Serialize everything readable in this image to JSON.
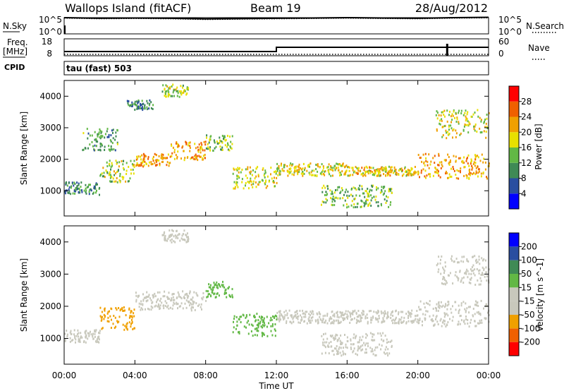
{
  "header": {
    "station": "Wallops Island (fitACF)",
    "beam": "Beam 19",
    "date": "28/Aug/2012"
  },
  "noise_panel": {
    "left_label": "N.Sky",
    "left_ticks": [
      "10^5",
      "10^0"
    ],
    "right_label": "N.Search",
    "right_ticks": [
      "10^5",
      "10^0"
    ]
  },
  "freq_panel": {
    "left_label_line1": "Freq.",
    "left_label_line2": "[MHz]",
    "left_ticks": [
      "18",
      "8"
    ],
    "right_label": "Nave",
    "right_ticks": [
      "60",
      "0"
    ]
  },
  "cpid_panel": {
    "label": "CPID",
    "mode_text": "tau (fast) 503"
  },
  "time_axis": {
    "label": "Time UT",
    "ticks": [
      "00:00",
      "04:00",
      "08:00",
      "12:00",
      "16:00",
      "20:00",
      "00:00"
    ]
  },
  "colors": {
    "power_scale": [
      "#0000ff",
      "#2a4ea0",
      "#3f8a55",
      "#62b845",
      "#e8e000",
      "#f0a000",
      "#f06000",
      "#ff0000"
    ],
    "velocity_scale": [
      "#ff0000",
      "#f06000",
      "#f0a000",
      "#c8c8bc",
      "#c8c8bc",
      "#62b845",
      "#3f8a55",
      "#2a4ea0",
      "#0000ff"
    ]
  },
  "chart_data": [
    {
      "type": "line",
      "name": "noise",
      "title": "",
      "xlabel": "",
      "ylabel": "N.Sky",
      "x_hours": [
        0,
        2,
        4,
        6,
        8,
        10,
        12,
        14,
        16,
        18,
        20,
        22,
        24
      ],
      "series": [
        {
          "name": "N.Sky",
          "values": [
            5.0,
            4.8,
            4.9,
            4.8,
            4.6,
            4.7,
            4.8,
            4.9,
            5.0,
            4.9,
            4.8,
            5.0,
            5.1
          ]
        },
        {
          "name": "N.Search",
          "values": [
            4.8,
            4.6,
            4.7,
            4.6,
            4.4,
            4.5,
            4.6,
            4.7,
            4.8,
            4.7,
            4.6,
            4.8,
            4.9
          ]
        }
      ],
      "ylim_exp": [
        0,
        5
      ]
    },
    {
      "type": "line",
      "name": "frequency",
      "ylabel": "Freq. [MHz]",
      "x_hours": [
        0,
        12,
        12,
        24
      ],
      "series": [
        {
          "name": "Freq.",
          "values": [
            10.5,
            10.5,
            13,
            13
          ]
        },
        {
          "name": "Nave",
          "values": [
            5,
            5,
            5,
            5
          ]
        }
      ],
      "ylim": [
        8,
        18
      ],
      "nave_ylim": [
        0,
        60
      ]
    },
    {
      "type": "heatmap",
      "name": "power",
      "ylabel": "Slant Range [km]",
      "xlabel": "Time UT",
      "colorbar_label": "Power [dB]",
      "colorbar_ticks": [
        "4",
        "8",
        "12",
        "16",
        "20",
        "24",
        "28"
      ],
      "ylim": [
        200,
        4500
      ],
      "y_ticks": [
        "1000",
        "2000",
        "3000",
        "4000"
      ],
      "xlim_hours": [
        0,
        24
      ],
      "regions": [
        {
          "t": [
            0.0,
            2.0
          ],
          "r": [
            900,
            1300
          ],
          "v": 10
        },
        {
          "t": [
            2.0,
            4.0
          ],
          "r": [
            1300,
            2000
          ],
          "v": 16
        },
        {
          "t": [
            4.0,
            6.0
          ],
          "r": [
            1800,
            2200
          ],
          "v": 22
        },
        {
          "t": [
            6.0,
            8.0
          ],
          "r": [
            2000,
            2600
          ],
          "v": 22
        },
        {
          "t": [
            8.0,
            9.5
          ],
          "r": [
            2300,
            2800
          ],
          "v": 14
        },
        {
          "t": [
            9.5,
            12.0
          ],
          "r": [
            1100,
            1800
          ],
          "v": 18
        },
        {
          "t": [
            12.0,
            16.0
          ],
          "r": [
            1500,
            1900
          ],
          "v": 18
        },
        {
          "t": [
            16.0,
            20.0
          ],
          "r": [
            1500,
            1800
          ],
          "v": 20
        },
        {
          "t": [
            20.0,
            24.0
          ],
          "r": [
            1400,
            2200
          ],
          "v": 22
        },
        {
          "t": [
            14.5,
            18.5
          ],
          "r": [
            500,
            1200
          ],
          "v": 14
        },
        {
          "t": [
            21.0,
            24.0
          ],
          "r": [
            2700,
            3600
          ],
          "v": 18
        },
        {
          "t": [
            1.0,
            3.0
          ],
          "r": [
            2300,
            3000
          ],
          "v": 12
        },
        {
          "t": [
            5.5,
            7.0
          ],
          "r": [
            4000,
            4400
          ],
          "v": 16
        },
        {
          "t": [
            3.5,
            5.0
          ],
          "r": [
            3600,
            3900
          ],
          "v": 10
        }
      ]
    },
    {
      "type": "heatmap",
      "name": "velocity",
      "ylabel": "Slant Range [km]",
      "xlabel": "Time UT",
      "colorbar_label": "Velocity [m s^-1]",
      "colorbar_ticks": [
        "200",
        "100",
        "50",
        "15",
        "-15",
        "-50",
        "-100",
        "-200"
      ],
      "ylim": [
        200,
        4500
      ],
      "y_ticks": [
        "1000",
        "2000",
        "3000",
        "4000"
      ],
      "xlim_hours": [
        0,
        24
      ],
      "regions": [
        {
          "t": [
            0.0,
            2.0
          ],
          "r": [
            900,
            1300
          ],
          "v": 0
        },
        {
          "t": [
            2.0,
            4.0
          ],
          "r": [
            1300,
            2000
          ],
          "v": -30
        },
        {
          "t": [
            4.0,
            8.0
          ],
          "r": [
            1900,
            2500
          ],
          "v": 0
        },
        {
          "t": [
            8.0,
            9.5
          ],
          "r": [
            2300,
            2800
          ],
          "v": 40
        },
        {
          "t": [
            9.5,
            12.0
          ],
          "r": [
            1100,
            1800
          ],
          "v": 40
        },
        {
          "t": [
            12.0,
            20.0
          ],
          "r": [
            1500,
            1900
          ],
          "v": 0
        },
        {
          "t": [
            20.0,
            24.0
          ],
          "r": [
            1400,
            2200
          ],
          "v": 0
        },
        {
          "t": [
            14.5,
            18.5
          ],
          "r": [
            500,
            1200
          ],
          "v": 0
        },
        {
          "t": [
            21.0,
            24.0
          ],
          "r": [
            2700,
            3600
          ],
          "v": 0
        },
        {
          "t": [
            5.5,
            7.0
          ],
          "r": [
            4000,
            4400
          ],
          "v": 0
        }
      ]
    }
  ]
}
